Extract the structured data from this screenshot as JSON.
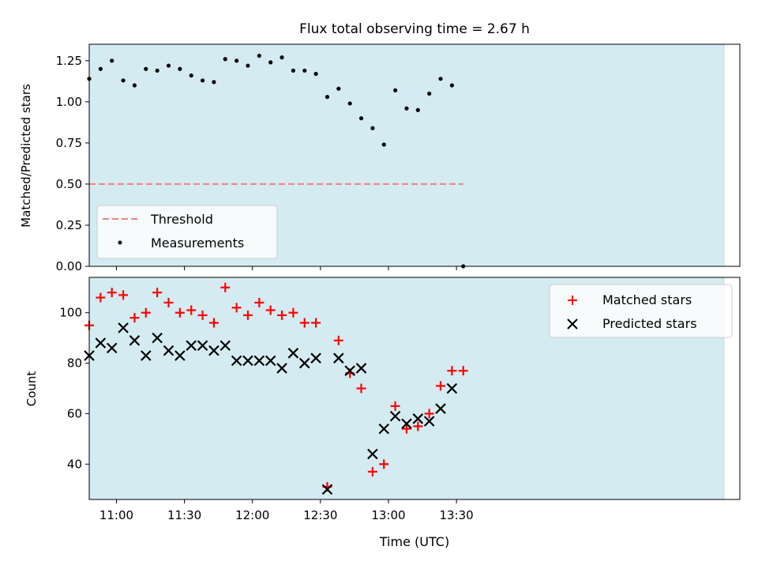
{
  "chart_data": [
    {
      "type": "scatter",
      "title": "Flux total observing time = 2.67 h",
      "xlabel": "",
      "ylabel": "Matched/Predicted stars",
      "ylim": [
        0,
        1.35
      ],
      "yticks": [
        "0.00",
        "0.25",
        "0.50",
        "0.75",
        "1.00",
        "1.25"
      ],
      "xlim_minutes": [
        648,
        935
      ],
      "shaded_span_minutes": [
        648,
        928
      ],
      "threshold": 0.5,
      "legend": [
        "Threshold",
        "Measurements"
      ],
      "legend_position": "lower-left",
      "colors": {
        "shade": "#d4ebf1",
        "threshold": "#f08080",
        "points": "#000000"
      },
      "series": [
        {
          "name": "Measurements",
          "x": [
            "10:48",
            "10:53",
            "10:58",
            "11:03",
            "11:08",
            "11:13",
            "11:18",
            "11:23",
            "11:28",
            "11:33",
            "11:38",
            "11:43",
            "11:48",
            "11:53",
            "11:58",
            "12:03",
            "12:08",
            "12:13",
            "12:18",
            "12:23",
            "12:28",
            "12:33",
            "12:38",
            "12:43",
            "12:48",
            "12:53",
            "12:58",
            "13:03",
            "13:08",
            "13:13",
            "13:18",
            "13:23",
            "13:28",
            "13:33"
          ],
          "values": [
            1.14,
            1.2,
            1.25,
            1.13,
            1.1,
            1.2,
            1.19,
            1.22,
            1.2,
            1.16,
            1.13,
            1.12,
            1.26,
            1.25,
            1.22,
            1.28,
            1.24,
            1.27,
            1.19,
            1.19,
            1.17,
            1.03,
            1.08,
            0.99,
            0.9,
            0.84,
            0.74,
            1.07,
            0.96,
            0.95,
            1.05,
            1.14,
            1.1,
            0.0
          ]
        }
      ]
    },
    {
      "type": "scatter",
      "title": "",
      "xlabel": "Time (UTC)",
      "ylabel": "Count",
      "ylim": [
        26,
        114
      ],
      "yticks": [
        "40",
        "60",
        "80",
        "100"
      ],
      "xticks": [
        "11:00",
        "11:30",
        "12:00",
        "12:30",
        "13:00",
        "13:30"
      ],
      "xlim_minutes": [
        648,
        935
      ],
      "legend": [
        "Matched stars",
        "Predicted stars"
      ],
      "legend_position": "upper-right",
      "colors": {
        "matched": "#ff0000",
        "predicted": "#000000"
      },
      "x": [
        "10:48",
        "10:53",
        "10:58",
        "11:03",
        "11:08",
        "11:13",
        "11:18",
        "11:23",
        "11:28",
        "11:33",
        "11:38",
        "11:43",
        "11:48",
        "11:53",
        "11:58",
        "12:03",
        "12:08",
        "12:13",
        "12:18",
        "12:23",
        "12:28",
        "12:33",
        "12:38",
        "12:43",
        "12:48",
        "12:53",
        "12:58",
        "13:03",
        "13:08",
        "13:13",
        "13:18",
        "13:23",
        "13:28",
        "13:33"
      ],
      "series": [
        {
          "name": "Matched stars",
          "values": [
            95,
            106,
            108,
            107,
            98,
            100,
            108,
            104,
            100,
            101,
            99,
            96,
            110,
            102,
            99,
            104,
            101,
            99,
            100,
            96,
            96,
            31,
            89,
            76,
            70,
            37,
            40,
            63,
            54,
            55,
            60,
            71,
            77,
            77
          ]
        },
        {
          "name": "Predicted stars",
          "values": [
            83,
            88,
            86,
            94,
            89,
            83,
            90,
            85,
            83,
            87,
            87,
            85,
            87,
            81,
            81,
            81,
            81,
            78,
            84,
            80,
            82,
            30,
            82,
            77,
            78,
            44,
            54,
            59,
            56,
            58,
            57,
            62,
            70,
            null
          ]
        }
      ]
    }
  ]
}
